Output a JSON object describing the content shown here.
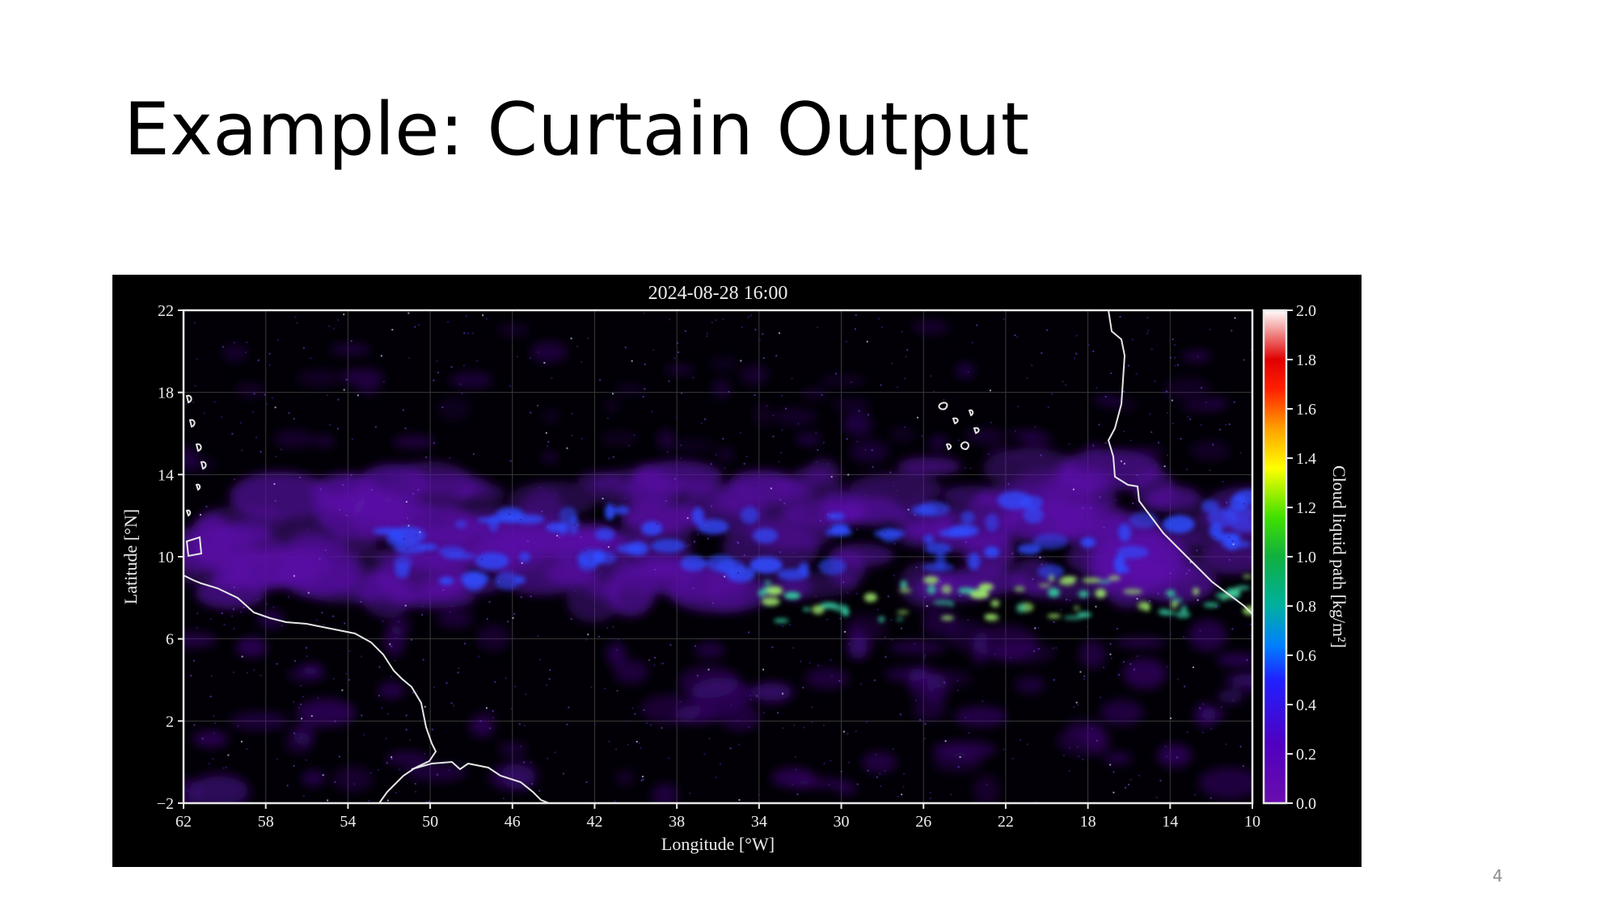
{
  "slide": {
    "title": "Example: Curtain Output",
    "page_number": "4"
  },
  "colors": {
    "background": "#ffffff",
    "figure_background": "#000000",
    "coastline": "#e6e6e6",
    "cloud_low": "#7a1fc9",
    "cloud_mid": "#2f4cff",
    "cloud_high": "#9be36a"
  },
  "chart_data": {
    "type": "heatmap",
    "title": "2024-08-28 16:00",
    "xlabel": "Longitude [°W]",
    "ylabel": "Latitude [°N]",
    "colorbar_label": "Cloud liquid path [kg/m²]",
    "x_ticks": [
      "62",
      "58",
      "54",
      "50",
      "46",
      "42",
      "38",
      "34",
      "30",
      "26",
      "22",
      "18",
      "14",
      "10"
    ],
    "y_ticks": [
      "22",
      "18",
      "14",
      "10",
      "6",
      "2",
      "−2"
    ],
    "colorbar_ticks": [
      "2.0",
      "1.8",
      "1.6",
      "1.4",
      "1.2",
      "1.0",
      "0.8",
      "0.6",
      "0.4",
      "0.2",
      "0.0"
    ],
    "xlim": [
      62,
      10
    ],
    "ylim": [
      -2,
      22
    ],
    "clim": [
      0.0,
      2.0
    ],
    "colormap": [
      "#000000",
      "#6a0dad",
      "#3030ff",
      "#00a0c0",
      "#20c060",
      "#60e000",
      "#ffff00",
      "#ff9900",
      "#ff0000",
      "#ffffff"
    ],
    "grid": true
  }
}
